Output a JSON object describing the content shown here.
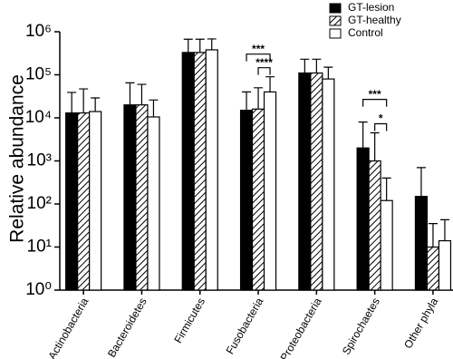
{
  "chart_data": {
    "type": "bar",
    "y_label": "Relative abundance",
    "log_y": true,
    "categories": [
      "Actinobacteria",
      "Bacteroidetes",
      "Firmicutes",
      "Fusobacteria",
      "Proteobacteria",
      "Spirochaetes",
      "Other phyla"
    ],
    "series": [
      {
        "name": "GT-lesion",
        "color": "#000000",
        "hatch": false,
        "values": [
          13000,
          20000,
          330000,
          15000,
          110000,
          2000,
          150
        ],
        "errors": [
          26000,
          45000,
          340000,
          25000,
          120000,
          6000,
          550
        ]
      },
      {
        "name": "GT-healthy",
        "color": "#ffffff",
        "hatch": true,
        "values": [
          13000,
          20000,
          330000,
          16000,
          110000,
          1000,
          10
        ],
        "errors": [
          34000,
          40000,
          340000,
          34000,
          120000,
          3500,
          25
        ]
      },
      {
        "name": "Control",
        "color": "#ffffff",
        "hatch": false,
        "values": [
          14000,
          10500,
          380000,
          40000,
          80000,
          120,
          14
        ],
        "errors": [
          15000,
          15500,
          300000,
          50000,
          70000,
          280,
          29
        ]
      }
    ],
    "ylim": [
      1,
      1000000
    ],
    "yticks": [
      {
        "value": 1,
        "label": "10⁰"
      },
      {
        "value": 10,
        "label": "10¹"
      },
      {
        "value": 100,
        "label": "10²"
      },
      {
        "value": 1000,
        "label": "10³"
      },
      {
        "value": 10000,
        "label": "10⁴"
      },
      {
        "value": 100000,
        "label": "10⁵"
      },
      {
        "value": 1000000,
        "label": "10⁶"
      }
    ],
    "annotations": [
      {
        "text": "***",
        "category": 3,
        "between": [
          0,
          2
        ]
      },
      {
        "text": "****",
        "category": 3,
        "between": [
          1,
          2
        ]
      },
      {
        "text": "***",
        "category": 5,
        "between": [
          0,
          2
        ]
      },
      {
        "text": "*",
        "category": 5,
        "between": [
          1,
          2
        ]
      }
    ],
    "legend": "top-right"
  }
}
